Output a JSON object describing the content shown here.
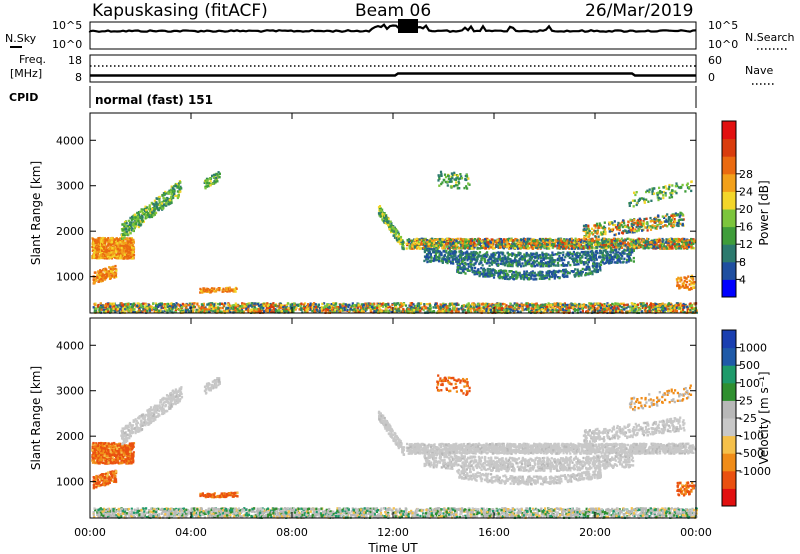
{
  "header": {
    "station": "Kapuskasing (fitACF)",
    "beam": "Beam 06",
    "date": "26/Mar/2019"
  },
  "sky_panel": {
    "label": "N.Sky",
    "y_ticks": [
      "10^5",
      "10^0"
    ],
    "right_label": "N.Search",
    "right_ticks": [
      "10^5",
      "10^0"
    ]
  },
  "freq_panel": {
    "label_line1": "Freq.",
    "label_line2": "[MHz]",
    "y_ticks": [
      "18",
      "8"
    ],
    "right_label": "Nave",
    "right_ticks": [
      "60",
      "0"
    ]
  },
  "cpid": {
    "label": "CPID",
    "mode_text": "normal (fast) 151"
  },
  "colors": {
    "power": [
      "#0000ff",
      "#1f4fa0",
      "#2c7a6e",
      "#3f9d3a",
      "#7cc53c",
      "#f3d62a",
      "#f2a01a",
      "#ea6a10",
      "#d93c0d",
      "#e21010"
    ],
    "velocity": [
      "#e21010",
      "#ea5010",
      "#f08c18",
      "#f5c04a",
      "#c8c8c8",
      "#b8b8b8",
      "#2f8f2f",
      "#1e9a6a",
      "#1f5aa8",
      "#1a3fb0"
    ]
  },
  "chart_data": [
    {
      "type": "heatmap",
      "name": "power",
      "ylabel": "Slant Range [km]",
      "ylim": [
        200,
        4600
      ],
      "xlim_hours": [
        0,
        24
      ],
      "y_ticks": [
        1000,
        2000,
        3000,
        4000
      ],
      "colorbar": {
        "label": "Power [dB]",
        "range": [
          0,
          32
        ],
        "ticks": [
          "4",
          "8",
          "12",
          "16",
          "20",
          "24",
          "28"
        ]
      }
    },
    {
      "type": "heatmap",
      "name": "velocity",
      "ylabel": "Slant Range [km]",
      "xlabel": "Time UT",
      "ylim": [
        200,
        4600
      ],
      "xlim_hours": [
        0,
        24
      ],
      "y_ticks": [
        1000,
        2000,
        3000,
        4000
      ],
      "x_ticks": [
        "00:00",
        "04:00",
        "08:00",
        "12:00",
        "16:00",
        "20:00",
        "00:00"
      ],
      "colorbar": {
        "label": "Velocity [m s⁻¹]",
        "ticks": [
          "1000",
          "500",
          "100",
          "25",
          "-25",
          "-100",
          "-500",
          "-1000"
        ]
      }
    }
  ]
}
